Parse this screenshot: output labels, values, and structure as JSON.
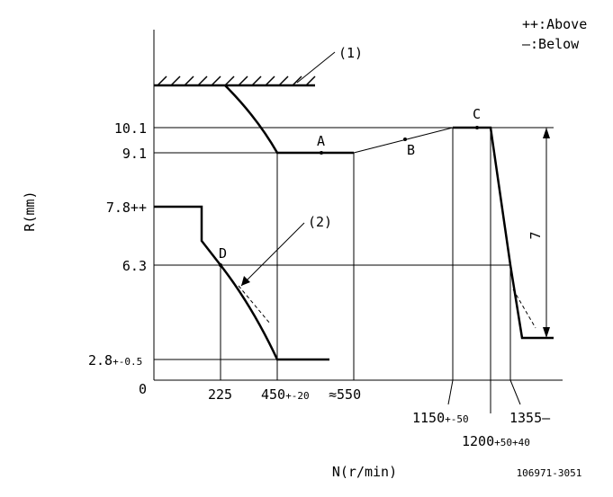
{
  "legend": {
    "above": "++:Above",
    "below": "—:Below"
  },
  "callouts": [
    "(1)",
    "(2)"
  ],
  "y_axis": {
    "title": "R(mm)",
    "labels": [
      {
        "main": "10.1"
      },
      {
        "main": "9.1"
      },
      {
        "main": "7.8++"
      },
      {
        "main": "6.3"
      },
      {
        "main": "2.8",
        "suffix": "+-0.5"
      },
      {
        "main": "0"
      }
    ]
  },
  "points": [
    "A",
    "B",
    "C",
    "D"
  ],
  "x_axis": {
    "title": "N(r/min)",
    "labels": [
      {
        "main": "225"
      },
      {
        "main": "450",
        "suffix": "+-20"
      },
      {
        "main": "≈550"
      },
      {
        "main": "1150",
        "suffix": "+-50"
      },
      {
        "main": "1200",
        "suffix": "+50+40"
      },
      {
        "main": "1355—"
      }
    ]
  },
  "dimension": "7",
  "code": "106971-3051"
}
